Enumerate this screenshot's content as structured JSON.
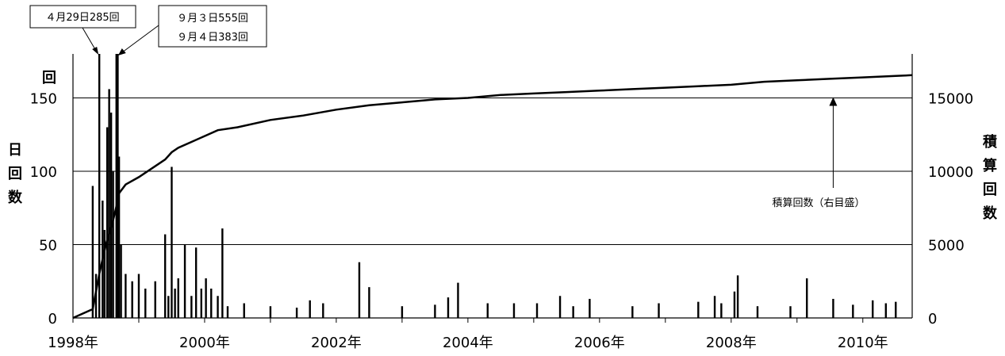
{
  "chart_data": {
    "type": "bar",
    "x_axis": {
      "tick_labels": [
        "1998年",
        "2000年",
        "2002年",
        "2004年",
        "2006年",
        "2008年",
        "2010年"
      ],
      "tick_years": [
        1998,
        2000,
        2002,
        2004,
        2006,
        2008,
        2010
      ],
      "range": [
        1998.0,
        2010.75
      ]
    },
    "y_left": {
      "unit_label": "回",
      "label": "日回数",
      "range": [
        0,
        180
      ],
      "ticks": [
        0,
        50,
        100,
        150
      ]
    },
    "y_right": {
      "label": "積算回数",
      "range": [
        0,
        18000
      ],
      "ticks": [
        0,
        5000,
        10000,
        15000
      ]
    },
    "grid": "horizontal at major ticks",
    "series": [
      {
        "type": "bar",
        "axis": "left",
        "bars": [
          [
            1998.3,
            90
          ],
          [
            1998.35,
            30
          ],
          [
            1998.4,
            285
          ],
          [
            1998.45,
            80
          ],
          [
            1998.48,
            60
          ],
          [
            1998.52,
            130
          ],
          [
            1998.55,
            156
          ],
          [
            1998.58,
            140
          ],
          [
            1998.61,
            100
          ],
          [
            1998.66,
            555
          ],
          [
            1998.68,
            383
          ],
          [
            1998.7,
            110
          ],
          [
            1998.73,
            50
          ],
          [
            1998.8,
            30
          ],
          [
            1998.9,
            25
          ],
          [
            1999.0,
            30
          ],
          [
            1999.1,
            20
          ],
          [
            1999.25,
            25
          ],
          [
            1999.4,
            57
          ],
          [
            1999.45,
            15
          ],
          [
            1999.5,
            103
          ],
          [
            1999.55,
            20
          ],
          [
            1999.6,
            27
          ],
          [
            1999.7,
            50
          ],
          [
            1999.8,
            15
          ],
          [
            1999.87,
            48
          ],
          [
            1999.95,
            20
          ],
          [
            2000.02,
            27
          ],
          [
            2000.1,
            20
          ],
          [
            2000.2,
            15
          ],
          [
            2000.27,
            61
          ],
          [
            2000.35,
            8
          ],
          [
            2000.6,
            10
          ],
          [
            2001.0,
            8
          ],
          [
            2001.4,
            7
          ],
          [
            2001.6,
            12
          ],
          [
            2001.8,
            10
          ],
          [
            2002.35,
            38
          ],
          [
            2002.5,
            21
          ],
          [
            2003.0,
            8
          ],
          [
            2003.5,
            9
          ],
          [
            2003.7,
            14
          ],
          [
            2003.85,
            24
          ],
          [
            2004.3,
            10
          ],
          [
            2004.7,
            10
          ],
          [
            2005.05,
            10
          ],
          [
            2005.4,
            15
          ],
          [
            2005.6,
            8
          ],
          [
            2005.85,
            13
          ],
          [
            2006.5,
            8
          ],
          [
            2006.9,
            10
          ],
          [
            2007.5,
            11
          ],
          [
            2007.75,
            15
          ],
          [
            2007.85,
            10
          ],
          [
            2008.05,
            18
          ],
          [
            2008.1,
            29
          ],
          [
            2008.4,
            8
          ],
          [
            2008.9,
            8
          ],
          [
            2009.15,
            27
          ],
          [
            2009.55,
            13
          ],
          [
            2009.85,
            9
          ],
          [
            2010.15,
            12
          ],
          [
            2010.35,
            10
          ],
          [
            2010.5,
            11
          ]
        ]
      },
      {
        "name": "積算回数（右目盛）",
        "type": "line",
        "axis": "right",
        "points": [
          [
            1998.0,
            0
          ],
          [
            1998.3,
            600
          ],
          [
            1998.4,
            3000
          ],
          [
            1998.5,
            5000
          ],
          [
            1998.6,
            6500
          ],
          [
            1998.65,
            7400
          ],
          [
            1998.7,
            8500
          ],
          [
            1998.8,
            9100
          ],
          [
            1999.0,
            9600
          ],
          [
            1999.2,
            10200
          ],
          [
            1999.4,
            10800
          ],
          [
            1999.5,
            11300
          ],
          [
            1999.6,
            11600
          ],
          [
            1999.8,
            12000
          ],
          [
            2000.0,
            12400
          ],
          [
            2000.2,
            12800
          ],
          [
            2000.5,
            13000
          ],
          [
            2001.0,
            13500
          ],
          [
            2001.5,
            13800
          ],
          [
            2002.0,
            14200
          ],
          [
            2002.5,
            14500
          ],
          [
            2003.0,
            14700
          ],
          [
            2003.5,
            14900
          ],
          [
            2004.0,
            15000
          ],
          [
            2004.5,
            15200
          ],
          [
            2005.0,
            15300
          ],
          [
            2005.5,
            15400
          ],
          [
            2006.0,
            15500
          ],
          [
            2006.5,
            15600
          ],
          [
            2007.0,
            15700
          ],
          [
            2007.5,
            15800
          ],
          [
            2008.0,
            15900
          ],
          [
            2008.5,
            16100
          ],
          [
            2009.0,
            16200
          ],
          [
            2009.5,
            16300
          ],
          [
            2010.0,
            16400
          ],
          [
            2010.5,
            16500
          ],
          [
            2010.75,
            16550
          ]
        ]
      }
    ],
    "annotations": [
      {
        "lines": [
          "４月29日285回"
        ],
        "target": [
          1998.4,
          180
        ]
      },
      {
        "lines": [
          "９月３日555回",
          "９月４日383回"
        ],
        "target": [
          1998.66,
          180
        ]
      },
      {
        "lines": [
          "積算回数（右目盛）"
        ],
        "target": [
          2009.55,
          15000
        ]
      }
    ]
  }
}
